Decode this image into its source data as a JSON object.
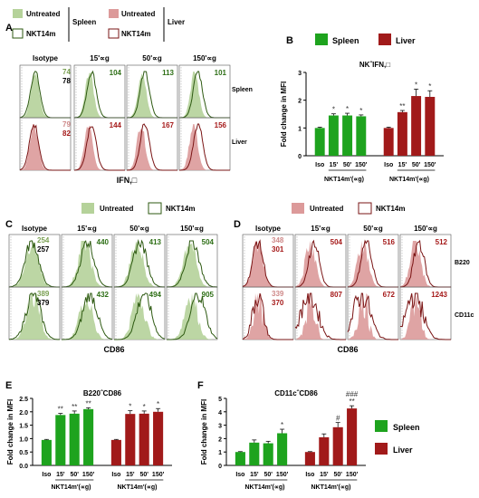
{
  "colors": {
    "spleen_fill": "#b5d29a",
    "spleen_line": "#2e5a12",
    "spleen_bar": "#1ea31e",
    "liver_fill": "#dc9a9a",
    "liver_line": "#7a1414",
    "liver_bar": "#a11a1a",
    "num_green": "#2e6f16",
    "num_red": "#a51a1a",
    "num_light_green": "#7aa052",
    "num_light_red": "#cf8a8a"
  },
  "panelA": {
    "letter": "A",
    "legend_spleen": [
      "Untreated",
      "NKT14m"
    ],
    "legend_spleen_organ": "Spleen",
    "legend_liver": [
      "Untreated",
      "NKT14m"
    ],
    "legend_liver_organ": "Liver",
    "columns": [
      "Isotype",
      "15'∝g",
      "50'∝g",
      "150'∝g"
    ],
    "rows": [
      "Spleen",
      "Liver"
    ],
    "xlabel": "IFN,□",
    "numbers": {
      "spleen_iso": [
        "74",
        "78"
      ],
      "spleen": [
        "104",
        "113",
        "101"
      ],
      "liver_iso": [
        "79",
        "82"
      ],
      "liver": [
        "144",
        "167",
        "156"
      ]
    }
  },
  "panelC": {
    "letter": "C",
    "legend": [
      "Untreated",
      "NKT14m"
    ],
    "columns": [
      "Isotype",
      "15'∝g",
      "50'∝g",
      "150'∝g"
    ],
    "xlabel": "CD86",
    "numbers": {
      "row1_iso": [
        "254",
        "257"
      ],
      "row1": [
        "440",
        "413",
        "504"
      ],
      "row2_iso": [
        "389",
        "379"
      ],
      "row2": [
        "432",
        "494",
        "905"
      ]
    }
  },
  "panelD": {
    "letter": "D",
    "legend": [
      "Untreated",
      "NKT14m"
    ],
    "columns": [
      "Isotype",
      "15'∝g",
      "50'∝g",
      "150'∝g"
    ],
    "rows": [
      "B220",
      "CD11c"
    ],
    "xlabel": "CD86",
    "numbers": {
      "row1_iso": [
        "348",
        "301"
      ],
      "row1": [
        "504",
        "516",
        "512"
      ],
      "row2_iso": [
        "339",
        "370"
      ],
      "row2": [
        "807",
        "672",
        "1243"
      ]
    }
  },
  "legendB": {
    "spleen": "Spleen",
    "liver": "Liver"
  },
  "legendEF": {
    "spleen": "Spleen",
    "liver": "Liver"
  },
  "chart_data": [
    {
      "panel": "B",
      "type": "bar",
      "title": "NKˆIFN,□",
      "ylabel": "Fold change in MFI",
      "ylim": [
        0,
        3
      ],
      "yticks": [
        "0",
        "1",
        "2",
        "3"
      ],
      "categories": [
        "Iso",
        "15'",
        "50'",
        "150'"
      ],
      "group_label": "NKT14m'(∝g)",
      "series": [
        {
          "name": "Spleen",
          "values": [
            1.0,
            1.45,
            1.45,
            1.42
          ],
          "errors": [
            0.03,
            0.06,
            0.08,
            0.05
          ],
          "marks": [
            "",
            "*",
            "*",
            "*"
          ]
        },
        {
          "name": "Liver",
          "values": [
            1.0,
            1.57,
            2.15,
            2.12
          ],
          "errors": [
            0.03,
            0.06,
            0.25,
            0.22
          ],
          "marks": [
            "",
            "**",
            "*",
            "*"
          ]
        }
      ]
    },
    {
      "panel": "E",
      "type": "bar",
      "title": "B220ˆCD86",
      "ylabel": "Fold change in MFI",
      "ylim": [
        0,
        2.5
      ],
      "yticks": [
        "0.0",
        "0.5",
        "1.0",
        "1.5",
        "2.0",
        "2.5"
      ],
      "categories": [
        "Iso",
        "15'",
        "50'",
        "150'"
      ],
      "group_label": "NKT14m'(∝g)",
      "series": [
        {
          "name": "Spleen",
          "values": [
            0.95,
            1.88,
            1.93,
            2.1
          ],
          "errors": [
            0.02,
            0.06,
            0.1,
            0.05
          ],
          "marks": [
            "",
            "**",
            "**",
            "**"
          ]
        },
        {
          "name": "Liver",
          "values": [
            0.95,
            1.92,
            1.93,
            2.0
          ],
          "errors": [
            0.02,
            0.12,
            0.1,
            0.12
          ],
          "marks": [
            "",
            "*",
            "*",
            "*"
          ]
        }
      ]
    },
    {
      "panel": "F",
      "type": "bar",
      "title": "CD11cˆCD86",
      "ylabel": "Fold change in MFI",
      "ylim": [
        0,
        5
      ],
      "yticks": [
        "0",
        "1",
        "2",
        "3",
        "4",
        "5"
      ],
      "categories": [
        "Iso",
        "15'",
        "50'",
        "150'"
      ],
      "group_label": "NKT14m'(∝g)",
      "series": [
        {
          "name": "Spleen",
          "values": [
            1.0,
            1.7,
            1.65,
            2.4
          ],
          "errors": [
            0.03,
            0.2,
            0.15,
            0.3
          ],
          "marks": [
            "",
            "",
            "",
            "*"
          ]
        },
        {
          "name": "Liver",
          "values": [
            1.0,
            2.1,
            2.85,
            4.25
          ],
          "errors": [
            0.03,
            0.25,
            0.35,
            0.2
          ],
          "marks": [
            "",
            "",
            "#",
            "###\n**"
          ]
        }
      ]
    }
  ]
}
